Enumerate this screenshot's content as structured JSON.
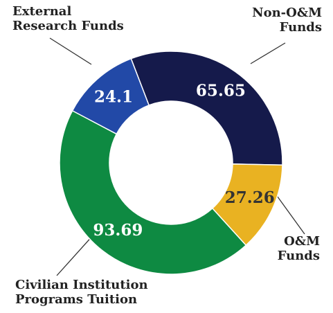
{
  "chart_data": {
    "type": "donut",
    "categories": [
      "Non-O&M Funds",
      "O&M Funds",
      "Civilian Institution Programs Tuition",
      "External Research Funds"
    ],
    "values": [
      65.65,
      27.26,
      93.69,
      24.1
    ],
    "colors": [
      "#151a4b",
      "#e9b222",
      "#0e8a42",
      "#2249a7"
    ],
    "label_colors": [
      "#ffffff",
      "#333333",
      "#ffffff",
      "#ffffff"
    ]
  }
}
